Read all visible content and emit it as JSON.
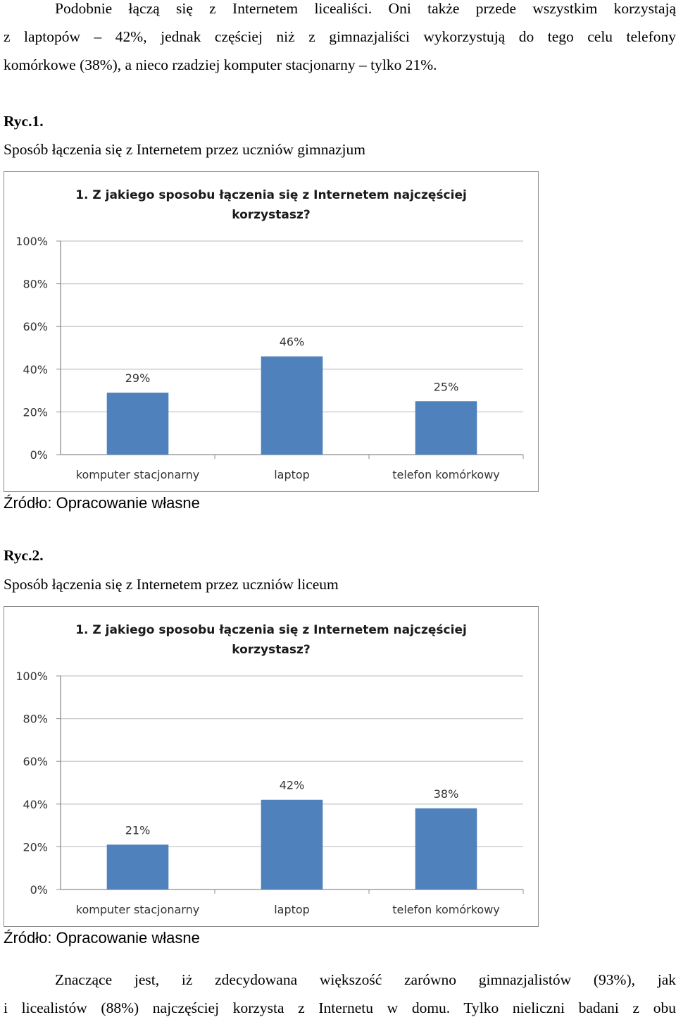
{
  "intro": {
    "lines": [
      "Podobnie łączą się z Internetem licealiści. Oni także przede wszystkim korzystają",
      "z laptopów – 42%, jednak częściej niż z gimnazjaliści wykorzystują do tego celu telefony",
      "komórkowe (38%), a nieco rzadziej komputer stacjonarny – tylko 21%."
    ]
  },
  "figure1": {
    "label": "Ryc.1.",
    "caption": "Sposób łączenia się z Internetem przez uczniów gimnazjum",
    "source": "Źródło: Opracowanie własne"
  },
  "figure2": {
    "label": "Ryc.2.",
    "caption": "Sposób łączenia się z Internetem przez uczniów liceum",
    "source": "Źródło: Opracowanie własne"
  },
  "outro": {
    "lines": [
      "Znaczące jest, iż zdecydowana większość zarówno gimnazjalistów (93%), jak",
      "i licealistów (88%) najczęściej korzysta z Internetu w domu. Tylko nieliczni badani z obu"
    ]
  },
  "chart_data": [
    {
      "type": "bar",
      "title": [
        "1. Z jakiego sposobu łączenia się z Internetem najczęściej",
        "korzystasz?"
      ],
      "categories": [
        "komputer stacjonarny",
        "laptop",
        "telefon komórkowy"
      ],
      "values": [
        29,
        46,
        25
      ],
      "data_labels": [
        "29%",
        "46%",
        "25%"
      ],
      "yticks": [
        "0%",
        "20%",
        "40%",
        "60%",
        "80%",
        "100%"
      ],
      "ylim": [
        0,
        100
      ],
      "grid": true,
      "legend": "none",
      "bar_color": "#4f81bd"
    },
    {
      "type": "bar",
      "title": [
        "1. Z jakiego sposobu łączenia się z Internetem najczęściej",
        "korzystasz?"
      ],
      "categories": [
        "komputer stacjonarny",
        "laptop",
        "telefon komórkowy"
      ],
      "values": [
        21,
        42,
        38
      ],
      "data_labels": [
        "21%",
        "42%",
        "38%"
      ],
      "yticks": [
        "0%",
        "20%",
        "40%",
        "60%",
        "80%",
        "100%"
      ],
      "ylim": [
        0,
        100
      ],
      "grid": true,
      "legend": "none",
      "bar_color": "#4f81bd"
    }
  ]
}
